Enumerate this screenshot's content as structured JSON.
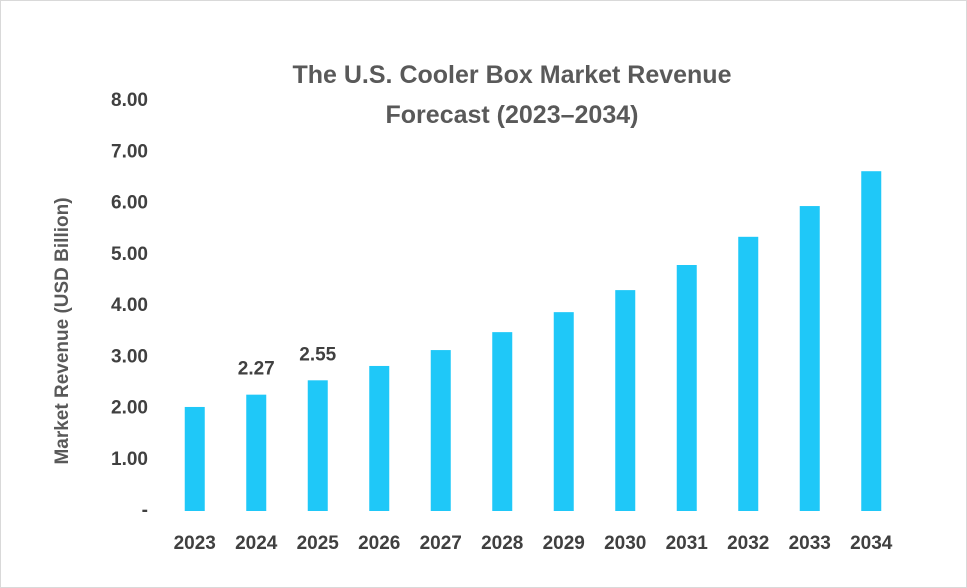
{
  "chart_data": {
    "type": "bar",
    "title": "The U.S. Cooler Box Market Revenue Forecast (2023–2034)",
    "y_label": "Market Revenue (USD Billion)",
    "categories": [
      "2023",
      "2024",
      "2025",
      "2026",
      "2027",
      "2028",
      "2029",
      "2030",
      "2031",
      "2032",
      "2033",
      "2034"
    ],
    "values": [
      2.03,
      2.27,
      2.55,
      2.83,
      3.14,
      3.49,
      3.88,
      4.31,
      4.8,
      5.35,
      5.95,
      6.63
    ],
    "value_labels": [
      null,
      "2.27",
      "2.55",
      null,
      null,
      null,
      null,
      null,
      null,
      null,
      null,
      null
    ],
    "color": "#1fc8f8",
    "ylim": [
      0,
      8
    ],
    "yticks": [
      {
        "value": 0,
        "label": "-"
      },
      {
        "value": 1,
        "label": "1.00"
      },
      {
        "value": 2,
        "label": "2.00"
      },
      {
        "value": 3,
        "label": "3.00"
      },
      {
        "value": 4,
        "label": "4.00"
      },
      {
        "value": 5,
        "label": "5.00"
      },
      {
        "value": 6,
        "label": "6.00"
      },
      {
        "value": 7,
        "label": "7.00"
      },
      {
        "value": 8,
        "label": "8.00"
      }
    ],
    "grid": false
  }
}
